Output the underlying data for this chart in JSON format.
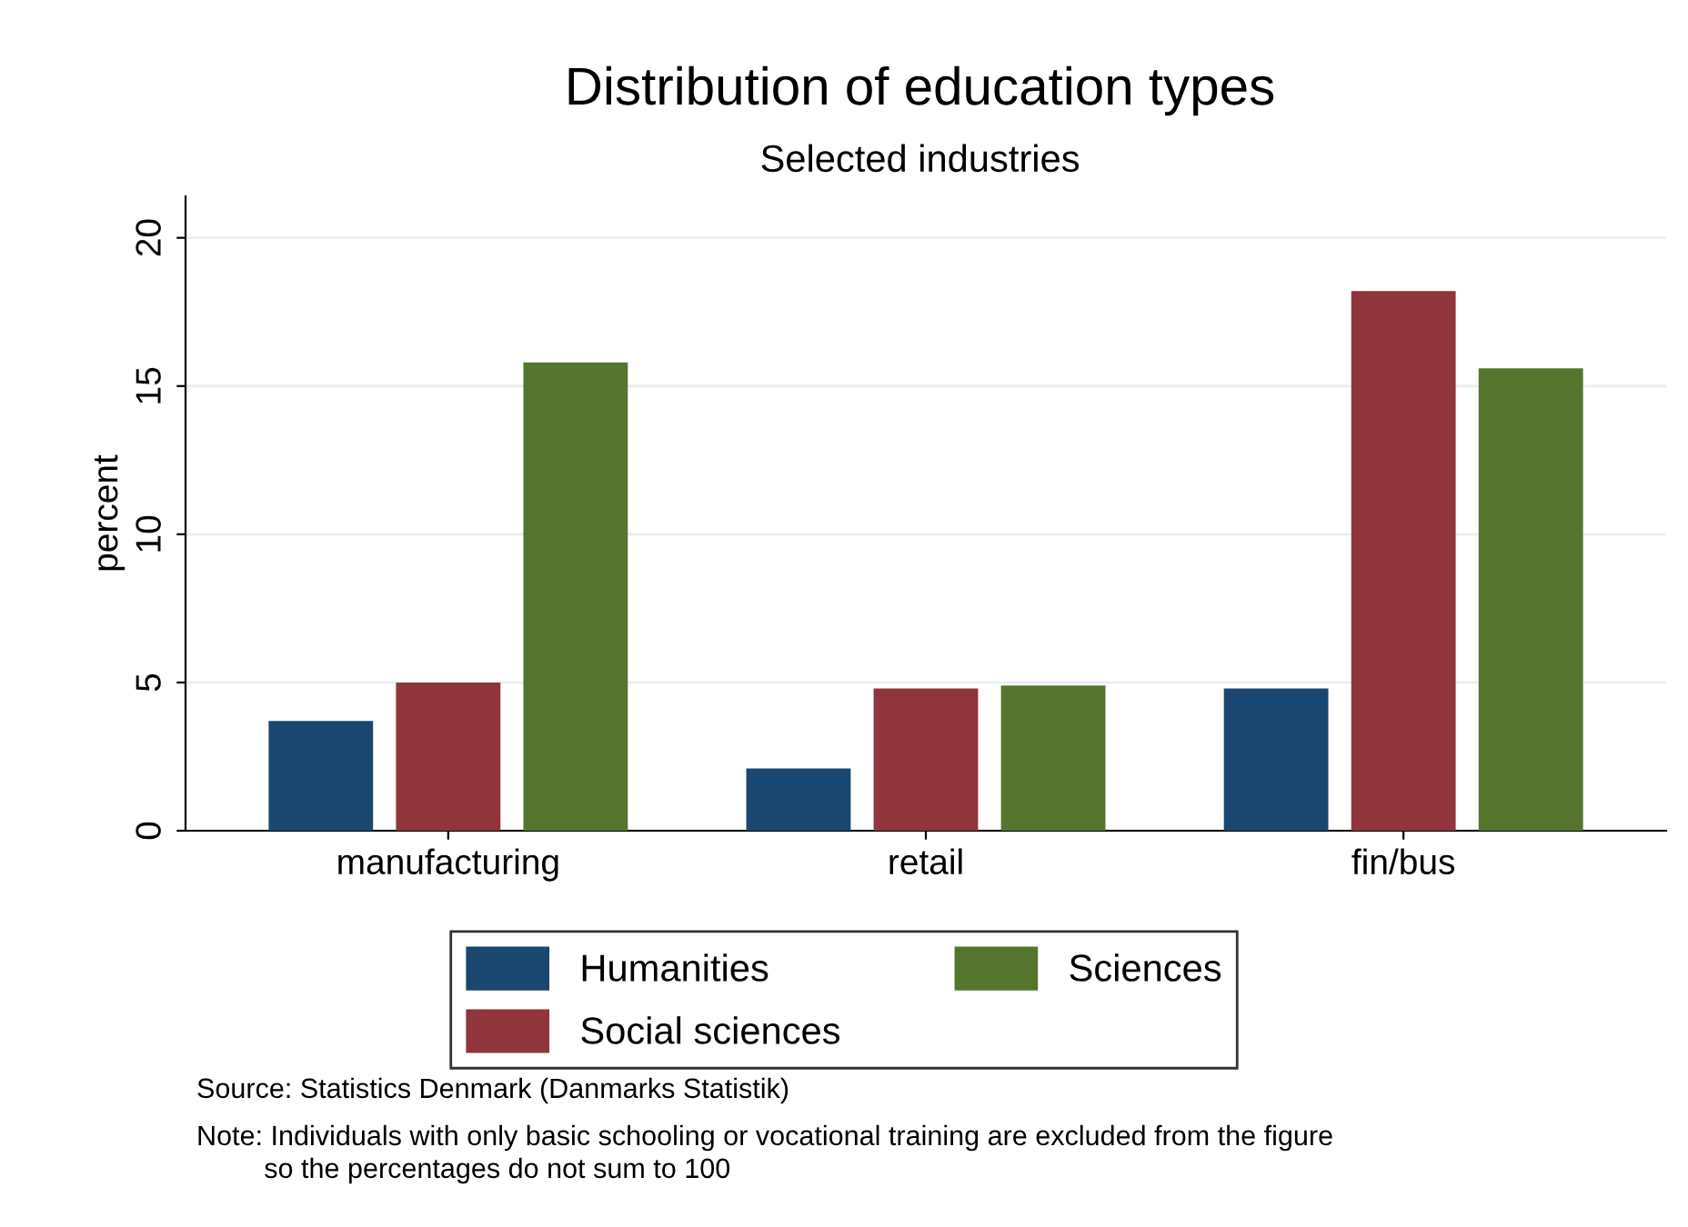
{
  "chart_data": {
    "type": "bar",
    "title": "Distribution of education types",
    "subtitle": "Selected industries",
    "ylabel": "percent",
    "categories": [
      "manufacturing",
      "retail",
      "fin/bus"
    ],
    "series": [
      {
        "name": "Humanities",
        "color": "#1a476f",
        "values": [
          3.7,
          2.1,
          4.8
        ]
      },
      {
        "name": "Social sciences",
        "color": "#90353b",
        "values": [
          5.0,
          4.8,
          18.2
        ]
      },
      {
        "name": "Sciences",
        "color": "#55752f",
        "values": [
          15.8,
          4.9,
          15.6
        ]
      }
    ],
    "ylim": [
      0,
      21.4
    ],
    "yticks": [
      0,
      5,
      10,
      15,
      20
    ],
    "grid": "y",
    "legend": "bottom",
    "annotations": [
      "Source: Statistics Denmark (Danmarks Statistik)",
      "Note: Individuals with only basic schooling or vocational training are excluded from the figure\nso the percentages do not sum to 100"
    ]
  }
}
